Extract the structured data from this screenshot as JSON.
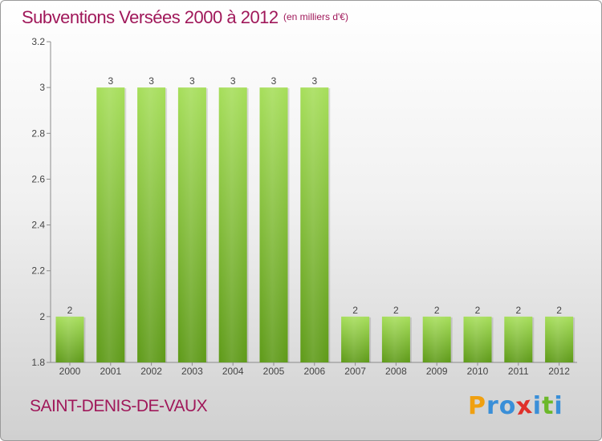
{
  "header": {
    "title": "Subventions Versées 2000 à 2012",
    "unit": "(en milliers d'€)"
  },
  "footer": {
    "commune": "SAINT-DENIS-DE-VAUX",
    "logo": {
      "letters": [
        "P",
        "r",
        "o",
        "x",
        "i",
        "t",
        "i"
      ],
      "colors": [
        "#f0a010",
        "#3a8fd8",
        "#3a8fd8",
        "#e0302a",
        "#3a8fd8",
        "#6cb82a",
        "#3a8fd8"
      ]
    }
  },
  "colors": {
    "bar_light": "#a6de5a",
    "bar_dark": "#5e9a18",
    "text": "#444444",
    "title": "#a0185a"
  },
  "chart_data": {
    "type": "bar",
    "categories": [
      "2000",
      "2001",
      "2002",
      "2003",
      "2004",
      "2005",
      "2006",
      "2007",
      "2008",
      "2009",
      "2010",
      "2011",
      "2012"
    ],
    "values": [
      2,
      3,
      3,
      3,
      3,
      3,
      3,
      2,
      2,
      2,
      2,
      2,
      2
    ],
    "data_labels": [
      "2",
      "3",
      "3",
      "3",
      "3",
      "3",
      "3",
      "2",
      "2",
      "2",
      "2",
      "2",
      "2"
    ],
    "yticks": [
      1.8,
      2,
      2.2,
      2.4,
      2.6,
      2.8,
      3,
      3.2
    ],
    "ytick_labels": [
      "1.8",
      "2",
      "2.2",
      "2.4",
      "2.6",
      "2.8",
      "3",
      "3.2"
    ],
    "ylim": [
      1.8,
      3.2
    ],
    "title": "Subventions Versées 2000 à 2012",
    "xlabel": "",
    "ylabel": "",
    "grid": false,
    "legend": "none"
  }
}
